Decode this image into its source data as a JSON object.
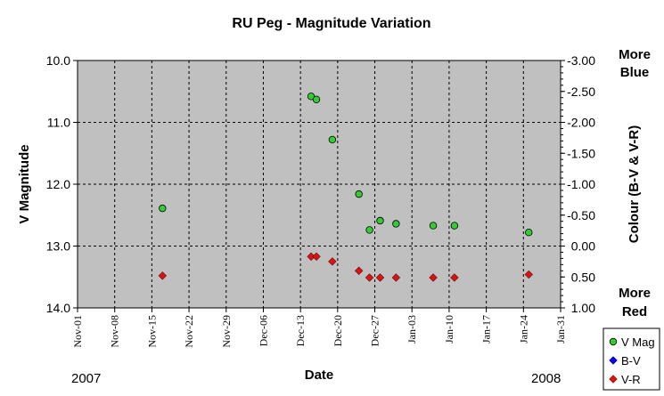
{
  "chart_data": {
    "type": "scatter",
    "title": "RU Peg - Magnitude Variation",
    "xlabel": "Date",
    "ylabel": "V Magnitude",
    "y2label": "Colour (B-V & V-R)",
    "ylim": [
      14.0,
      10.0
    ],
    "y2lim": [
      1.0,
      -3.0
    ],
    "y_reversed": true,
    "y2_reversed": true,
    "x_range": [
      "2007-11-01",
      "2008-01-31"
    ],
    "x_ticks": [
      "Nov-01",
      "Nov-08",
      "Nov-15",
      "Nov-22",
      "Nov-29",
      "Dec-06",
      "Dec-13",
      "Dec-20",
      "Dec-27",
      "Jan-03",
      "Jan-10",
      "Jan-17",
      "Jan-24",
      "Jan-31"
    ],
    "y_ticks": [
      "10.0",
      "11.0",
      "12.0",
      "13.0",
      "14.0"
    ],
    "y2_ticks": [
      "-3.00",
      "-2.50",
      "-2.00",
      "-1.50",
      "-1.00",
      "-0.50",
      "0.00",
      "0.50",
      "1.00"
    ],
    "year_left": "2007",
    "year_right": "2008",
    "y2_top_note": [
      "More",
      "Blue"
    ],
    "y2_bottom_note": [
      "More",
      "Red"
    ],
    "grid": true,
    "legend_position": "bottom-right",
    "colors": {
      "plot_bg": "#c0c0c0",
      "v_mag": "#33cc33",
      "b_v": "#0000ff",
      "v_r": "#dd1111"
    },
    "series": [
      {
        "name": "V Mag",
        "axis": "left",
        "marker": "circle",
        "points": [
          [
            "2007-11-17",
            12.39
          ],
          [
            "2007-12-15",
            10.58
          ],
          [
            "2007-12-16",
            10.63
          ],
          [
            "2007-12-19",
            11.28
          ],
          [
            "2007-12-24",
            12.16
          ],
          [
            "2007-12-26",
            12.74
          ],
          [
            "2007-12-28",
            12.59
          ],
          [
            "2007-12-31",
            12.64
          ],
          [
            "2008-01-07",
            12.67
          ],
          [
            "2008-01-11",
            12.67
          ],
          [
            "2008-01-25",
            12.78
          ]
        ]
      },
      {
        "name": "B-V",
        "axis": "right",
        "marker": "diamond",
        "points": []
      },
      {
        "name": "V-R",
        "axis": "right",
        "marker": "diamond",
        "points": [
          [
            "2007-11-17",
            0.48
          ],
          [
            "2007-12-15",
            0.17
          ],
          [
            "2007-12-16",
            0.17
          ],
          [
            "2007-12-19",
            0.25
          ],
          [
            "2007-12-24",
            0.4
          ],
          [
            "2007-12-26",
            0.51
          ],
          [
            "2007-12-28",
            0.51
          ],
          [
            "2007-12-31",
            0.51
          ],
          [
            "2008-01-07",
            0.51
          ],
          [
            "2008-01-11",
            0.51
          ],
          [
            "2008-01-25",
            0.46
          ]
        ]
      }
    ]
  }
}
